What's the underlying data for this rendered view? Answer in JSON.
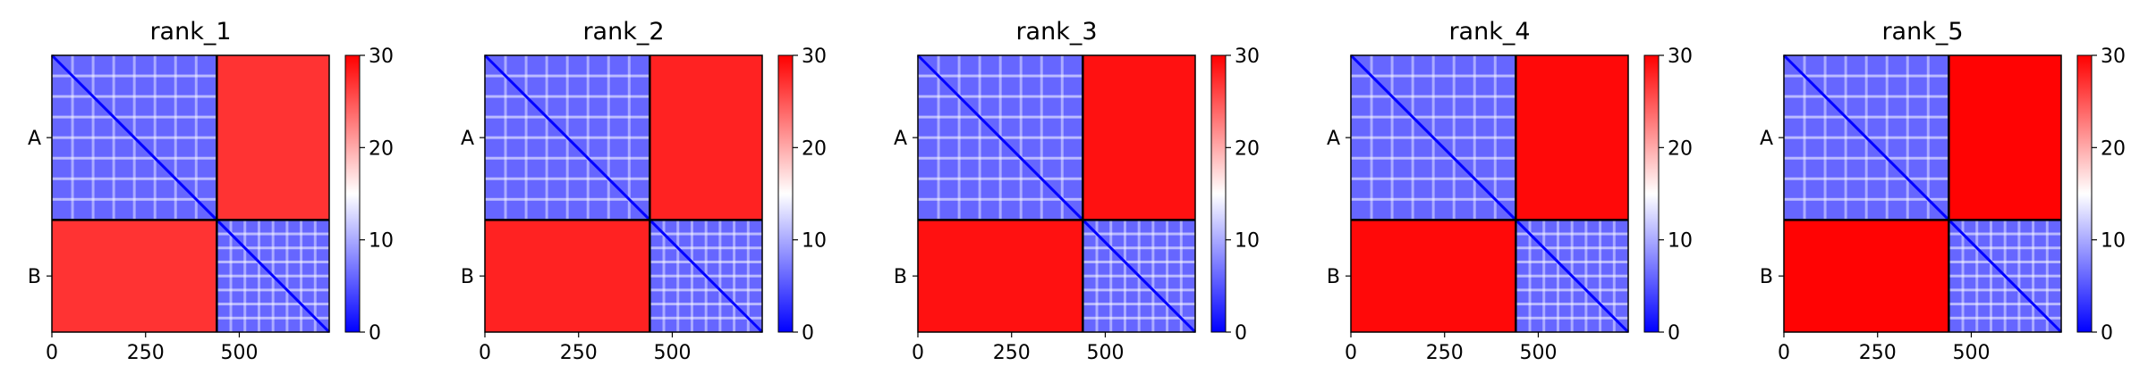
{
  "chart_data": [
    {
      "type": "heatmap",
      "title": "rank_1",
      "chains": [
        "A",
        "B"
      ],
      "chain_boundary": 440,
      "length": 740,
      "xticks": [
        0,
        250,
        500
      ],
      "xtick_labels": [
        "0",
        "250",
        "500"
      ],
      "colorbar": {
        "min": 0,
        "max": 30,
        "ticks": [
          0,
          10,
          20,
          30
        ],
        "tick_labels": [
          "0",
          "10",
          "20",
          "30"
        ],
        "colors": [
          "#0000ff",
          "#ffffff",
          "#ff0000"
        ]
      },
      "intra_chain_level": 6,
      "inter_chain_level": 27
    },
    {
      "type": "heatmap",
      "title": "rank_2",
      "chains": [
        "A",
        "B"
      ],
      "chain_boundary": 440,
      "length": 740,
      "xticks": [
        0,
        250,
        500
      ],
      "xtick_labels": [
        "0",
        "250",
        "500"
      ],
      "colorbar": {
        "min": 0,
        "max": 30,
        "ticks": [
          0,
          10,
          20,
          30
        ],
        "tick_labels": [
          "0",
          "10",
          "20",
          "30"
        ],
        "colors": [
          "#0000ff",
          "#ffffff",
          "#ff0000"
        ]
      },
      "intra_chain_level": 6,
      "inter_chain_level": 28
    },
    {
      "type": "heatmap",
      "title": "rank_3",
      "chains": [
        "A",
        "B"
      ],
      "chain_boundary": 440,
      "length": 740,
      "xticks": [
        0,
        250,
        500
      ],
      "xtick_labels": [
        "0",
        "250",
        "500"
      ],
      "colorbar": {
        "min": 0,
        "max": 30,
        "ticks": [
          0,
          10,
          20,
          30
        ],
        "tick_labels": [
          "0",
          "10",
          "20",
          "30"
        ],
        "colors": [
          "#0000ff",
          "#ffffff",
          "#ff0000"
        ]
      },
      "intra_chain_level": 6,
      "inter_chain_level": 29
    },
    {
      "type": "heatmap",
      "title": "rank_4",
      "chains": [
        "A",
        "B"
      ],
      "chain_boundary": 440,
      "length": 740,
      "xticks": [
        0,
        250,
        500
      ],
      "xtick_labels": [
        "0",
        "250",
        "500"
      ],
      "colorbar": {
        "min": 0,
        "max": 30,
        "ticks": [
          0,
          10,
          20,
          30
        ],
        "tick_labels": [
          "0",
          "10",
          "20",
          "30"
        ],
        "colors": [
          "#0000ff",
          "#ffffff",
          "#ff0000"
        ]
      },
      "intra_chain_level": 6,
      "inter_chain_level": 29.5
    },
    {
      "type": "heatmap",
      "title": "rank_5",
      "chains": [
        "A",
        "B"
      ],
      "chain_boundary": 440,
      "length": 740,
      "xticks": [
        0,
        250,
        500
      ],
      "xtick_labels": [
        "0",
        "250",
        "500"
      ],
      "colorbar": {
        "min": 0,
        "max": 30,
        "ticks": [
          0,
          10,
          20,
          30
        ],
        "tick_labels": [
          "0",
          "10",
          "20",
          "30"
        ],
        "colors": [
          "#0000ff",
          "#ffffff",
          "#ff0000"
        ]
      },
      "intra_chain_level": 6,
      "inter_chain_level": 29.8
    }
  ]
}
